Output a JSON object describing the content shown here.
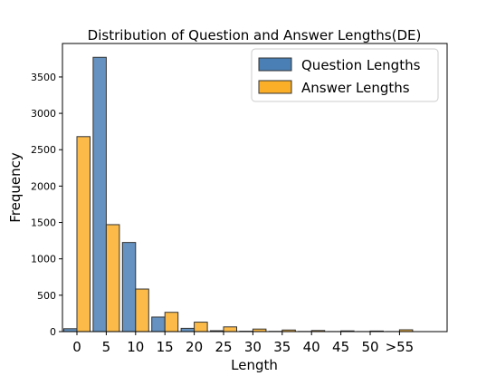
{
  "chart_data": {
    "type": "bar",
    "title": "Distribution of Question and Answer Lengths(DE)",
    "xlabel": "Length",
    "ylabel": "Frequency",
    "categories": [
      "0",
      "5",
      "10",
      "15",
      "20",
      "25",
      "30",
      "35",
      "40",
      "45",
      "50",
      ">55"
    ],
    "series": [
      {
        "name": "Question Lengths",
        "color": "#4a7fb5",
        "values": [
          40,
          3770,
          1225,
          200,
          45,
          12,
          5,
          3,
          2,
          1,
          1,
          1
        ]
      },
      {
        "name": "Answer Lengths",
        "color": "#fbaf28",
        "values": [
          2680,
          1470,
          585,
          265,
          130,
          65,
          35,
          22,
          15,
          10,
          8,
          25
        ]
      }
    ],
    "ylim": [
      0,
      3960
    ],
    "yticks": [
      "0",
      "500",
      "1000",
      "1500",
      "2000",
      "2500",
      "3000",
      "3500"
    ],
    "legend_position": "top-right",
    "grid": false
  }
}
